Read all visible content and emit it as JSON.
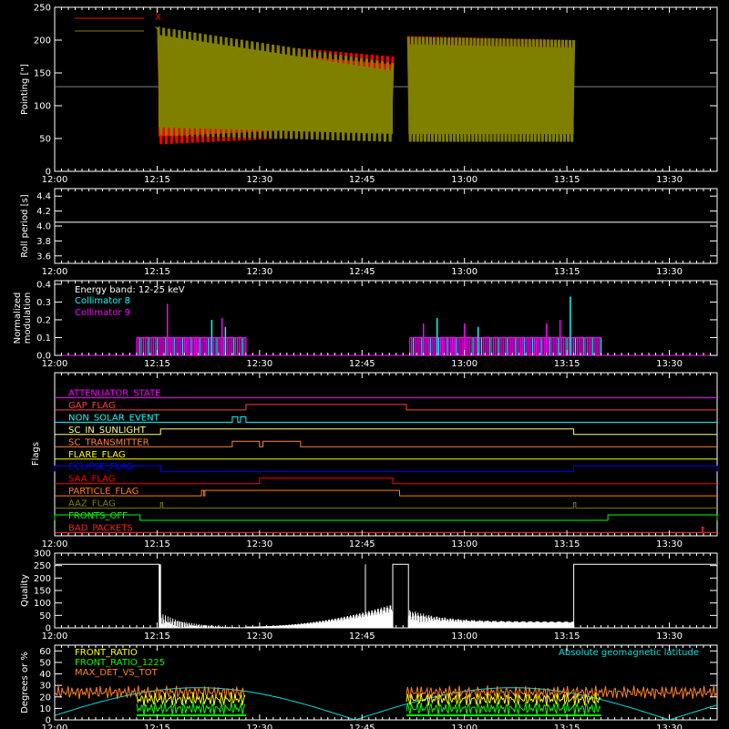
{
  "time_axis": {
    "domain_minutes": [
      0,
      97
    ],
    "tick_labels": [
      "12:00",
      "12:15",
      "12:30",
      "12:45",
      "13:00",
      "13:15",
      "13:30"
    ],
    "tick_minutes": [
      0,
      15,
      30,
      45,
      60,
      75,
      90
    ]
  },
  "chart_data": [
    {
      "id": "pointing",
      "type": "line",
      "ylabel": "Pointing [\"]",
      "ylim": [
        0,
        250
      ],
      "yticks": [
        0,
        50,
        100,
        150,
        200,
        250
      ],
      "series": [
        {
          "name": "X",
          "color": "#ff0000",
          "segments": [
            [
              15.2,
              49.5
            ],
            [
              51.8,
              76.0
            ]
          ],
          "ranges": [
            [
              [
                15.2,
                41,
                206
              ],
              [
                49.5,
                58,
                175
              ]
            ],
            [
              [
                51.8,
                72,
                206
              ],
              [
                76.0,
                75,
                200
              ]
            ]
          ]
        },
        {
          "name": "Y",
          "color": "#808000",
          "segments": [
            [
              15.2,
              49.5
            ],
            [
              51.8,
              76.0
            ]
          ],
          "ranges": [
            [
              [
                15.2,
                55,
                220
              ],
              [
                49.5,
                45,
                165
              ]
            ],
            [
              [
                51.8,
                45,
                205
              ],
              [
                76.0,
                45,
                200
              ]
            ]
          ]
        }
      ],
      "reference_y": 129
    },
    {
      "id": "roll",
      "type": "line",
      "ylabel": "Roll period [s]",
      "ylim": [
        3.5,
        4.5
      ],
      "yticks": [
        3.6,
        3.8,
        4.0,
        4.2,
        4.4
      ],
      "ytick_labels": [
        "3.6",
        "3.8",
        "4.0",
        "4.2",
        "4.4"
      ],
      "series": [
        {
          "name": "",
          "color": "#ffffff",
          "x": [
            0,
            97
          ],
          "y": [
            4.05,
            4.05
          ]
        }
      ]
    },
    {
      "id": "modulation",
      "type": "bar",
      "ylabel": "Normalized modulation",
      "ylim": [
        0,
        0.42
      ],
      "yticks": [
        0,
        0.1,
        0.2,
        0.3,
        0.4
      ],
      "ytick_labels": [
        "0.0",
        "0.1",
        "0.2",
        "0.3",
        "0.4"
      ],
      "annotation": "Energy band: 12-25 keV",
      "series": [
        {
          "name": "Collimator 8",
          "color": "#00ffff"
        },
        {
          "name": "Collimator 9",
          "color": "#ff00ff"
        }
      ],
      "active_windows": [
        [
          12,
          28
        ],
        [
          52,
          80
        ]
      ],
      "spikes": [
        [
          16.5,
          0.29
        ],
        [
          23,
          0.2
        ],
        [
          24.5,
          0.21
        ],
        [
          25,
          0.16
        ],
        [
          54,
          0.18
        ],
        [
          56,
          0.21
        ],
        [
          60,
          0.18
        ],
        [
          62,
          0.16
        ],
        [
          72,
          0.18
        ],
        [
          75.5,
          0.33
        ],
        [
          74,
          0.2
        ]
      ]
    },
    {
      "id": "flags",
      "type": "line",
      "ylabel": "Flags",
      "series": [
        {
          "name": "ATTENUATOR_STATE",
          "color": "#ff00ff",
          "high": []
        },
        {
          "name": "GAP_FLAG",
          "color": "#ff4040",
          "high": [
            [
              28.0,
              51.5
            ]
          ]
        },
        {
          "name": "NON_SOLAR_EVENT",
          "color": "#00ffff",
          "high": [
            [
              26.0,
              26.8
            ],
            [
              27.2,
              28.0
            ]
          ]
        },
        {
          "name": "SC_IN_SUNLIGHT",
          "color": "#ffff80",
          "high": [
            [
              15.5,
              76.0
            ]
          ]
        },
        {
          "name": "SC_TRANSMITTER",
          "color": "#ff8040",
          "high": [
            [
              26.0,
              30.0
            ],
            [
              30.5,
              36.0
            ]
          ]
        },
        {
          "name": "FLARE_FLAG",
          "color": "#ffff00",
          "high": []
        },
        {
          "name": "ECLIPSE_FLAG",
          "color": "#0000ff",
          "high": [
            [
              0,
              15.5
            ],
            [
              76.0,
              97
            ]
          ]
        },
        {
          "name": "SAA_FLAG",
          "color": "#ff0000",
          "high": [
            [
              30.0,
              49.5
            ]
          ]
        },
        {
          "name": "PARTICLE_FLAG",
          "color": "#ff8000",
          "high": [
            [
              21.5,
              22.0
            ],
            [
              21.8,
              50.5
            ]
          ]
        },
        {
          "name": "AAZ_FLAG",
          "color": "#808000",
          "high": [
            [
              15.5,
              15.8
            ],
            [
              76.0,
              76.3
            ]
          ]
        },
        {
          "name": "FRONTS_OFF",
          "color": "#00ff00",
          "high": [
            [
              0,
              12.5
            ],
            [
              81.0,
              97
            ]
          ]
        },
        {
          "name": "BAD_PACKETS",
          "color": "#ff2020",
          "high": [
            [
              94.8,
              95.0
            ]
          ]
        }
      ]
    },
    {
      "id": "quality",
      "type": "area",
      "ylabel": "Quality",
      "ylim": [
        0,
        300
      ],
      "yticks": [
        0,
        50,
        100,
        150,
        200,
        250,
        300
      ],
      "series": [
        {
          "name": "",
          "color": "#ffffff"
        }
      ]
    },
    {
      "id": "ratios",
      "type": "line",
      "ylabel": "Degrees or %",
      "ylim": [
        0,
        65
      ],
      "yticks": [
        0,
        10,
        20,
        30,
        40,
        50,
        60
      ],
      "series": [
        {
          "name": "FRONT_RATIO",
          "color": "#ffff00"
        },
        {
          "name": "FRONT_RATIO_1225",
          "color": "#00ff00"
        },
        {
          "name": "MAX_DET_VS_TOT",
          "color": "#ff8020"
        }
      ],
      "right_label": {
        "text": "Absolute geomagnetic latitude",
        "color": "#00e0e0"
      }
    }
  ]
}
